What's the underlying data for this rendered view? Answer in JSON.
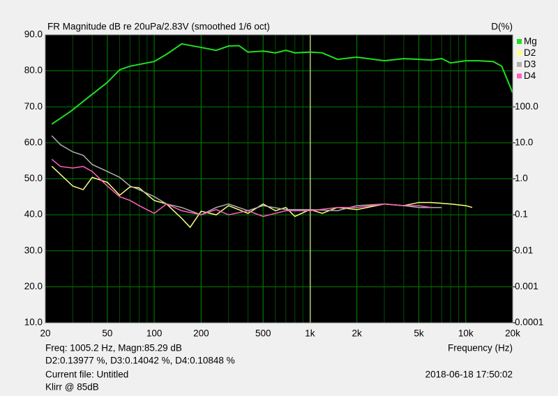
{
  "chart_data": {
    "type": "line",
    "title": "FR Magnitude dB re 20uPa/2.83V (smoothed 1/6 oct)",
    "y2_label": "D(%)",
    "x_label": "Frequency (Hz)",
    "x_scale": "log",
    "y2_scale": "log",
    "grid": true,
    "legend": "right",
    "xlim": [
      20,
      20000
    ],
    "xticks": [
      20,
      50,
      100,
      200,
      500,
      {
        "value": 1000,
        "label": "1k"
      },
      {
        "value": 2000,
        "label": "2k"
      },
      {
        "value": 5000,
        "label": "5k"
      },
      {
        "value": 10000,
        "label": "10k"
      },
      {
        "value": 20000,
        "label": "20k"
      }
    ],
    "ylim": [
      10,
      90
    ],
    "yticks": [
      {
        "value": 10,
        "label": "10.0"
      },
      {
        "value": 20,
        "label": "20.0"
      },
      {
        "value": 30,
        "label": "30.0"
      },
      {
        "value": 40,
        "label": "40.0"
      },
      {
        "value": 50,
        "label": "50.0"
      },
      {
        "value": 60,
        "label": "60.0"
      },
      {
        "value": 70,
        "label": "70.0"
      },
      {
        "value": 80,
        "label": "80.0"
      },
      {
        "value": 90,
        "label": "90.0"
      }
    ],
    "y2lim": [
      0.0001,
      10000
    ],
    "y2ticks": [
      0.0001,
      0.001,
      0.01,
      0.1,
      {
        "value": 1,
        "label": "1.0"
      },
      {
        "value": 10,
        "label": "10.0"
      },
      {
        "value": 100,
        "label": "100.0"
      }
    ],
    "cursor_x": 1005.2,
    "cursor_color": "#ffffa0",
    "series": [
      {
        "name": "Mg",
        "color": "#20e020",
        "x": [
          22,
          29,
          40,
          50,
          60,
          70,
          100,
          120,
          150,
          200,
          250,
          300,
          350,
          400,
          500,
          600,
          700,
          800,
          1000,
          1200,
          1500,
          2000,
          3000,
          4000,
          5000,
          6000,
          7000,
          8000,
          10000,
          12000,
          15000,
          17000,
          20000
        ],
        "values": [
          65.2,
          68.7,
          73.5,
          76.8,
          80.3,
          81.3,
          82.6,
          84.6,
          87.5,
          86.5,
          85.7,
          86.9,
          87,
          85.2,
          85.5,
          85,
          85.7,
          85,
          85.2,
          85,
          83.2,
          83.8,
          82.8,
          83.4,
          83.2,
          83,
          83.4,
          82.2,
          82.8,
          82.8,
          82.6,
          81.3,
          73.9
        ]
      },
      {
        "name": "D2",
        "color": "#ffff80",
        "axis": "y2",
        "x": [
          22,
          30,
          35,
          40,
          50,
          60,
          70,
          80,
          100,
          120,
          150,
          170,
          200,
          250,
          300,
          400,
          500,
          600,
          700,
          800,
          1000,
          1200,
          1500,
          2000,
          3000,
          4000,
          5000,
          6000,
          8000,
          10000,
          11000
        ],
        "values": [
          2.24,
          0.63,
          0.5,
          1.1,
          0.8,
          0.35,
          0.6,
          0.56,
          0.25,
          0.2,
          0.08,
          0.045,
          0.126,
          0.1,
          0.18,
          0.11,
          0.2,
          0.13,
          0.16,
          0.09,
          0.14,
          0.11,
          0.16,
          0.14,
          0.2,
          0.18,
          0.22,
          0.22,
          0.2,
          0.18,
          0.16
        ]
      },
      {
        "name": "D3",
        "color": "#b0b0b0",
        "axis": "y2",
        "x": [
          22,
          25,
          30,
          35,
          40,
          50,
          60,
          70,
          80,
          100,
          120,
          150,
          200,
          250,
          300,
          400,
          500,
          700,
          1000,
          1500,
          2000,
          3000,
          4000,
          5000,
          7000
        ],
        "values": [
          15.8,
          8.9,
          5.6,
          4.5,
          2.5,
          1.6,
          1.1,
          0.63,
          0.5,
          0.32,
          0.2,
          0.16,
          0.1,
          0.16,
          0.2,
          0.13,
          0.18,
          0.14,
          0.14,
          0.13,
          0.18,
          0.2,
          0.18,
          0.16,
          0.16
        ]
      },
      {
        "name": "D4",
        "color": "#ff60c0",
        "axis": "y2",
        "x": [
          22,
          25,
          30,
          35,
          40,
          50,
          60,
          70,
          80,
          100,
          120,
          150,
          200,
          250,
          300,
          400,
          500,
          700,
          1000,
          1500,
          2000,
          3000,
          4000,
          5000,
          6000
        ],
        "values": [
          3.5,
          2.2,
          2,
          2.2,
          1.6,
          0.63,
          0.32,
          0.25,
          0.18,
          0.11,
          0.2,
          0.13,
          0.1,
          0.14,
          0.1,
          0.13,
          0.09,
          0.13,
          0.13,
          0.16,
          0.16,
          0.2,
          0.18,
          0.18,
          0.16
        ]
      }
    ],
    "info": [
      "Freq: 1005.2 Hz, Magn:85.29 dB",
      "D2:0.13977 %, D3:0.14042 %, D4:0.10848 %",
      "Current file: Untitled",
      "Klirr @ 85dB"
    ],
    "timestamp": "2018-06-18  17:50:02"
  }
}
